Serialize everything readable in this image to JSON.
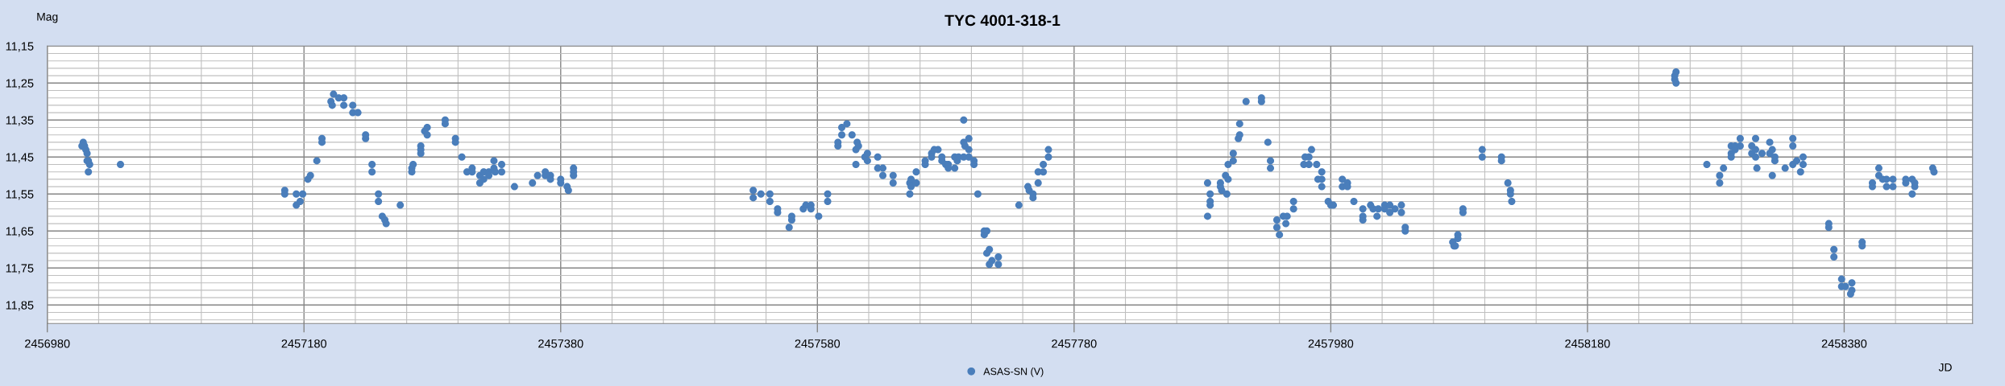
{
  "chart_data": {
    "type": "scatter",
    "title": "TYC 4001-318-1",
    "xlabel": "JD",
    "ylabel": "Mag",
    "xlim": [
      2456980,
      2458480
    ],
    "ylim": [
      11.9,
      11.15
    ],
    "xticks": [
      2456980,
      {
        "value": 2457020,
        "label": null
      },
      {
        "value": 2457060,
        "label": null
      },
      {
        "value": 2457100,
        "label": null
      },
      {
        "value": 2457140,
        "label": null
      },
      2457180,
      {
        "value": 2457220,
        "label": null
      },
      {
        "value": 2457260,
        "label": null
      },
      {
        "value": 2457300,
        "label": null
      },
      {
        "value": 2457340,
        "label": null
      },
      2457380,
      {
        "value": 2457420,
        "label": null
      },
      {
        "value": 2457460,
        "label": null
      },
      {
        "value": 2457500,
        "label": null
      },
      {
        "value": 2457540,
        "label": null
      },
      2457580,
      {
        "value": 2457620,
        "label": null
      },
      {
        "value": 2457660,
        "label": null
      },
      {
        "value": 2457700,
        "label": null
      },
      {
        "value": 2457740,
        "label": null
      },
      2457780,
      {
        "value": 2457820,
        "label": null
      },
      {
        "value": 2457860,
        "label": null
      },
      {
        "value": 2457900,
        "label": null
      },
      {
        "value": 2457940,
        "label": null
      },
      2457980,
      {
        "value": 2458020,
        "label": null
      },
      {
        "value": 2458060,
        "label": null
      },
      {
        "value": 2458100,
        "label": null
      },
      {
        "value": 2458140,
        "label": null
      },
      2458180,
      {
        "value": 2458220,
        "label": null
      },
      {
        "value": 2458260,
        "label": null
      },
      {
        "value": 2458300,
        "label": null
      },
      {
        "value": 2458340,
        "label": null
      },
      2458380,
      {
        "value": 2458420,
        "label": null
      },
      {
        "value": 2458460,
        "label": null
      }
    ],
    "yticks": [
      {
        "value": 11.15,
        "label": "11,15"
      },
      {
        "value": 11.17,
        "label": null
      },
      {
        "value": 11.19,
        "label": null
      },
      {
        "value": 11.21,
        "label": null
      },
      {
        "value": 11.23,
        "label": null
      },
      {
        "value": 11.25,
        "label": "11,25"
      },
      {
        "value": 11.27,
        "label": null
      },
      {
        "value": 11.29,
        "label": null
      },
      {
        "value": 11.31,
        "label": null
      },
      {
        "value": 11.33,
        "label": null
      },
      {
        "value": 11.35,
        "label": "11,35"
      },
      {
        "value": 11.37,
        "label": null
      },
      {
        "value": 11.39,
        "label": null
      },
      {
        "value": 11.41,
        "label": null
      },
      {
        "value": 11.43,
        "label": null
      },
      {
        "value": 11.45,
        "label": "11,45"
      },
      {
        "value": 11.47,
        "label": null
      },
      {
        "value": 11.49,
        "label": null
      },
      {
        "value": 11.51,
        "label": null
      },
      {
        "value": 11.53,
        "label": null
      },
      {
        "value": 11.55,
        "label": "11,55"
      },
      {
        "value": 11.57,
        "label": null
      },
      {
        "value": 11.59,
        "label": null
      },
      {
        "value": 11.61,
        "label": null
      },
      {
        "value": 11.63,
        "label": null
      },
      {
        "value": 11.65,
        "label": "11,65"
      },
      {
        "value": 11.67,
        "label": null
      },
      {
        "value": 11.69,
        "label": null
      },
      {
        "value": 11.71,
        "label": null
      },
      {
        "value": 11.73,
        "label": null
      },
      {
        "value": 11.75,
        "label": "11,75"
      },
      {
        "value": 11.77,
        "label": null
      },
      {
        "value": 11.79,
        "label": null
      },
      {
        "value": 11.81,
        "label": null
      },
      {
        "value": 11.83,
        "label": null
      },
      {
        "value": 11.85,
        "label": "11,85"
      },
      {
        "value": 11.87,
        "label": null
      },
      {
        "value": 11.89,
        "label": null
      }
    ],
    "grid": true,
    "legend": "bottom",
    "marker": "circle",
    "series": [
      {
        "name": "ASAS-SN (V)",
        "color": "#4a7ebb",
        "x": [
          2457008,
          2457007,
          2457009,
          2457010,
          2457011,
          2457011,
          2457012,
          2457013,
          2457012,
          2457037,
          2457165,
          2457165,
          2457174,
          2457174,
          2457177,
          2457179,
          2457183,
          2457185,
          2457190,
          2457194,
          2457194,
          2457201,
          2457202,
          2457203,
          2457207,
          2457211,
          2457211,
          2457218,
          2457218,
          2457222,
          2457228,
          2457228,
          2457233,
          2457233,
          2457238,
          2457238,
          2457241,
          2457243,
          2457244,
          2457255,
          2457264,
          2457264,
          2457265,
          2457271,
          2457271,
          2457271,
          2457274,
          2457276,
          2457276,
          2457290,
          2457290,
          2457298,
          2457298,
          2457303,
          2457307,
          2457311,
          2457311,
          2457317,
          2457317,
          2457320,
          2457320,
          2457324,
          2457324,
          2457328,
          2457328,
          2457329,
          2457334,
          2457334,
          2457344,
          2457358,
          2457362,
          2457368,
          2457368,
          2457372,
          2457372,
          2457380,
          2457380,
          2457385,
          2457386,
          2457390,
          2457390,
          2457390,
          2457530,
          2457530,
          2457536,
          2457543,
          2457543,
          2457549,
          2457549,
          2457558,
          2457560,
          2457560,
          2457569,
          2457571,
          2457575,
          2457575,
          2457581,
          2457588,
          2457588,
          2457596,
          2457596,
          2457599,
          2457599,
          2457603,
          2457607,
          2457610,
          2457610,
          2457611,
          2457612,
          2457617,
          2457619,
          2457619,
          2457627,
          2457627,
          2457631,
          2457631,
          2457639,
          2457639,
          2457652,
          2457652,
          2457653,
          2457653,
          2457657,
          2457657,
          2457664,
          2457664,
          2457669,
          2457669,
          2457674,
          2457671,
          2457677,
          2457677,
          2457680,
          2457682,
          2457682,
          2457687,
          2457687,
          2457689,
          2457690,
          2457694,
          2457694,
          2457694,
          2457695,
          2457698,
          2457698,
          2457698,
          2457702,
          2457702,
          2457705,
          2457710,
          2457710,
          2457712,
          2457714,
          2457712,
          2457716,
          2457714,
          2457721,
          2457721,
          2457737,
          2457744,
          2457745,
          2457748,
          2457748,
          2457752,
          2457752,
          2457756,
          2457756,
          2457760,
          2457760,
          2457884,
          2457884,
          2457886,
          2457886,
          2457886,
          2457894,
          2457894,
          2457895,
          2457899,
          2457898,
          2457900,
          2457900,
          2457904,
          2457904,
          2457908,
          2457909,
          2457909,
          2457914,
          2457926,
          2457926,
          2457931,
          2457933,
          2457933,
          2457938,
          2457938,
          2457940,
          2457943,
          2457945,
          2457946,
          2457951,
          2457951,
          2457959,
          2457960,
          2457963,
          2457963,
          2457965,
          2457969,
          2457973,
          2457970,
          2457973,
          2457973,
          2457978,
          2457980,
          2457982,
          2457989,
          2457989,
          2457993,
          2457993,
          2457998,
          2458005,
          2458005,
          2458005,
          2458011,
          2458013,
          2458016,
          2458017,
          2458022,
          2458022,
          2458026,
          2458026,
          2458030,
          2458035,
          2458035,
          2458038,
          2458038,
          2458075,
          2458076,
          2458077,
          2458079,
          2458079,
          2458083,
          2458083,
          2458098,
          2458098,
          2458113,
          2458113,
          2458118,
          2458120,
          2458120,
          2458121,
          2458248,
          2458249,
          2458248,
          2458249,
          2458273,
          2458283,
          2458283,
          2458286,
          2458292,
          2458292,
          2458292,
          2458295,
          2458295,
          2458299,
          2458299,
          2458308,
          2458308,
          2458311,
          2458311,
          2458311,
          2458312,
          2458316,
          2458322,
          2458322,
          2458324,
          2458324,
          2458326,
          2458326,
          2458334,
          2458340,
          2458340,
          2458340,
          2458343,
          2458346,
          2458348,
          2458348,
          2458368,
          2458368,
          2458372,
          2458372,
          2458378,
          2458378,
          2458381,
          2458385,
          2458386,
          2458386,
          2458394,
          2458394,
          2458402,
          2458402,
          2458407,
          2458407,
          2458410,
          2458413,
          2458413,
          2458418,
          2458418,
          2458428,
          2458428,
          2458433,
          2458433,
          2458435,
          2458435,
          2458449,
          2458450
        ],
        "values": [
          11.41,
          11.42,
          11.42,
          11.43,
          11.44,
          11.46,
          11.46,
          11.47,
          11.49,
          11.47,
          11.54,
          11.55,
          11.55,
          11.58,
          11.57,
          11.55,
          11.51,
          11.5,
          11.46,
          11.4,
          11.41,
          11.3,
          11.31,
          11.28,
          11.29,
          11.29,
          11.31,
          11.31,
          11.33,
          11.33,
          11.39,
          11.4,
          11.47,
          11.49,
          11.55,
          11.57,
          11.61,
          11.62,
          11.63,
          11.58,
          11.48,
          11.49,
          11.47,
          11.42,
          11.43,
          11.44,
          11.38,
          11.37,
          11.39,
          11.35,
          11.36,
          11.4,
          11.41,
          11.45,
          11.49,
          11.48,
          11.49,
          11.5,
          11.52,
          11.49,
          11.51,
          11.49,
          11.5,
          11.46,
          11.48,
          11.49,
          11.47,
          11.49,
          11.53,
          11.52,
          11.5,
          11.49,
          11.5,
          11.5,
          11.51,
          11.51,
          11.52,
          11.53,
          11.54,
          11.48,
          11.49,
          11.5,
          11.54,
          11.56,
          11.55,
          11.55,
          11.57,
          11.59,
          11.6,
          11.64,
          11.61,
          11.62,
          11.59,
          11.58,
          11.58,
          11.59,
          11.61,
          11.55,
          11.57,
          11.41,
          11.42,
          11.37,
          11.39,
          11.36,
          11.39,
          11.47,
          11.43,
          11.41,
          11.42,
          11.45,
          11.44,
          11.46,
          11.45,
          11.48,
          11.48,
          11.5,
          11.5,
          11.52,
          11.55,
          11.52,
          11.51,
          11.53,
          11.49,
          11.52,
          11.46,
          11.47,
          11.44,
          11.45,
          11.43,
          11.43,
          11.45,
          11.46,
          11.47,
          11.48,
          11.47,
          11.45,
          11.48,
          11.46,
          11.45,
          11.35,
          11.41,
          11.45,
          11.42,
          11.4,
          11.43,
          11.45,
          11.46,
          11.47,
          11.55,
          11.65,
          11.66,
          11.65,
          11.7,
          11.71,
          11.73,
          11.74,
          11.72,
          11.74,
          11.58,
          11.53,
          11.54,
          11.55,
          11.56,
          11.49,
          11.52,
          11.47,
          11.49,
          11.43,
          11.45,
          11.52,
          11.61,
          11.55,
          11.57,
          11.58,
          11.52,
          11.53,
          11.54,
          11.55,
          11.5,
          11.47,
          11.51,
          11.44,
          11.46,
          11.4,
          11.39,
          11.36,
          11.3,
          11.29,
          11.3,
          11.41,
          11.46,
          11.48,
          11.62,
          11.64,
          11.66,
          11.61,
          11.63,
          11.61,
          11.57,
          11.59,
          11.47,
          11.45,
          11.45,
          11.47,
          11.43,
          11.47,
          11.49,
          11.51,
          11.51,
          11.53,
          11.57,
          11.58,
          11.58,
          11.51,
          11.53,
          11.52,
          11.53,
          11.57,
          11.59,
          11.61,
          11.62,
          11.58,
          11.59,
          11.61,
          11.59,
          11.58,
          11.59,
          11.58,
          11.6,
          11.59,
          11.58,
          11.6,
          11.64,
          11.65,
          11.68,
          11.69,
          11.69,
          11.66,
          11.67,
          11.59,
          11.6,
          11.43,
          11.45,
          11.45,
          11.46,
          11.52,
          11.54,
          11.55,
          11.57,
          11.23,
          11.22,
          11.24,
          11.25,
          11.47,
          11.5,
          11.52,
          11.48,
          11.44,
          11.45,
          11.42,
          11.42,
          11.43,
          11.4,
          11.42,
          11.42,
          11.44,
          11.4,
          11.43,
          11.45,
          11.48,
          11.44,
          11.41,
          11.44,
          11.43,
          11.5,
          11.45,
          11.46,
          11.48,
          11.4,
          11.42,
          11.47,
          11.46,
          11.49,
          11.45,
          11.47,
          11.63,
          11.64,
          11.7,
          11.72,
          11.78,
          11.8,
          11.8,
          11.82,
          11.79,
          11.81,
          11.68,
          11.69,
          11.52,
          11.53,
          11.48,
          11.5,
          11.51,
          11.51,
          11.53,
          11.51,
          11.53,
          11.51,
          11.52,
          11.51,
          11.55,
          11.53,
          11.52,
          11.48,
          11.49
        ]
      }
    ]
  }
}
